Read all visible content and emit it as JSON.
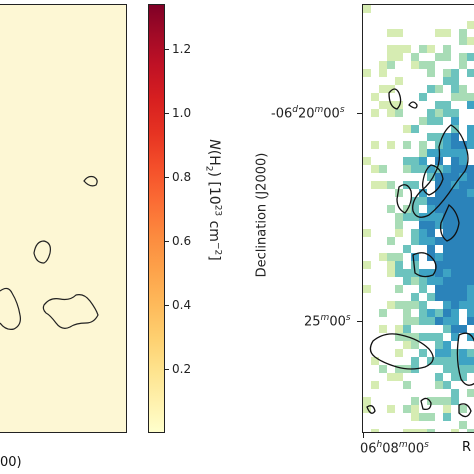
{
  "left_panel": {
    "xaxis_fragment": "00)"
  },
  "colorbar": {
    "ticks": [
      "1.2",
      "1.0",
      "0.8",
      "0.6",
      "0.4",
      "0.2"
    ],
    "label_parts": {
      "n": "N",
      "h_open": "(H",
      "sub2": "2",
      "mid": ") [10",
      "exp23": "23",
      "unit": " cm",
      "expm2": "−2",
      "close": "]"
    },
    "colors": [
      "#ffffcc",
      "#fed070",
      "#fc8a3e",
      "#e63322",
      "#bf1125",
      "#800026"
    ]
  },
  "right_panel": {
    "ylabel": "Declination (J2000)",
    "ytick1": {
      "pre": "-06",
      "d": "d",
      "mid1": "20",
      "m": "m",
      "mid2": "00",
      "s": "s"
    },
    "ytick2": {
      "pre": "25",
      "m": "m",
      "mid": "00",
      "s": "s"
    },
    "xtick": {
      "pre": "06",
      "h": "h",
      "mid1": "08",
      "m": "m",
      "mid2": "00",
      "s": "s"
    },
    "xlabel_fragment": "R",
    "cell_colors": [
      "#d6ecb2",
      "#a8dcb6",
      "#6cc3be",
      "#3ea3c4",
      "#2b83ba"
    ]
  }
}
